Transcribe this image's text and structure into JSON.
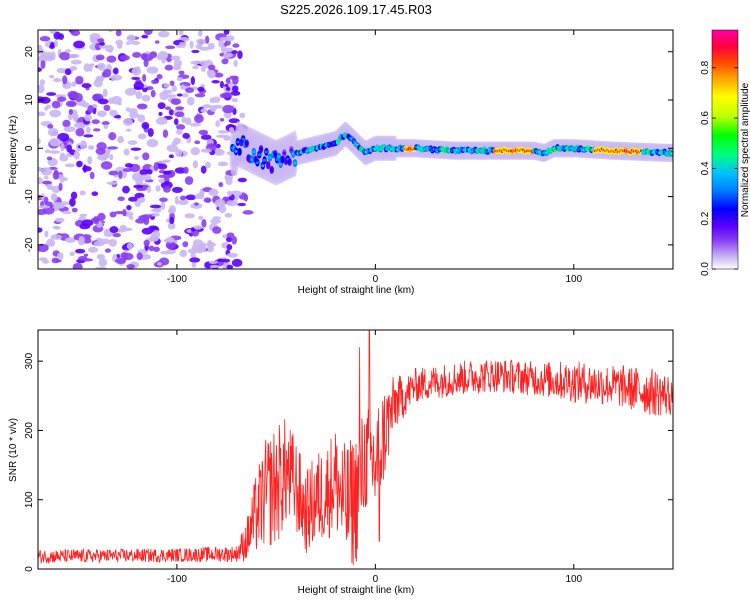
{
  "figure_title": "S225.2026.109.17.45.R03",
  "chart_data": [
    {
      "type": "heatmap",
      "title": "S225.2026.109.17.45.R03",
      "xlabel": "Height of straight line (km)",
      "ylabel": "Frequency (Hz)",
      "xlim": [
        -170,
        150
      ],
      "ylim": [
        -25,
        24.5
      ],
      "xticks": [
        -100,
        0,
        100
      ],
      "yticks": [
        -20,
        -10,
        0,
        10,
        20
      ],
      "colorbar": {
        "label": "Normalized spectral amplitude",
        "range": [
          0,
          0.95
        ],
        "ticks": [
          0.0,
          0.2,
          0.4,
          0.6,
          0.8
        ],
        "colormap": [
          "#ffffff",
          "#c9b6f2",
          "#8a3ef0",
          "#5a00ff",
          "#0000ff",
          "#0080ff",
          "#00c0ff",
          "#00ff80",
          "#00ff00",
          "#c0ff00",
          "#ffff00",
          "#ffa000",
          "#ff4000",
          "#ff0040",
          "#ff00a0"
        ]
      },
      "ridge": {
        "description_points_x": [
          -70,
          -60,
          -50,
          -40,
          -30,
          -20,
          -15,
          -10,
          -5,
          0,
          10,
          20,
          40,
          60,
          80,
          85,
          90,
          100,
          120,
          150
        ],
        "frequency_hz": [
          1,
          -1,
          -3,
          -1,
          0,
          1,
          3,
          1,
          -1,
          0,
          0,
          0,
          -0.5,
          -0.5,
          -0.5,
          -1,
          0,
          0,
          -0.5,
          -1
        ]
      }
    },
    {
      "type": "line",
      "xlabel": "Height of straight line (km)",
      "ylabel": "SNR (10 * v/v)",
      "xlim": [
        -170,
        150
      ],
      "ylim": [
        0,
        345
      ],
      "xticks": [
        -100,
        0,
        100
      ],
      "yticks": [
        0,
        100,
        200,
        300
      ],
      "series": [
        {
          "name": "SNR",
          "color": "#ff2020",
          "envelope_x": [
            -170,
            -100,
            -70,
            -65,
            -60,
            -55,
            -50,
            -45,
            -40,
            -35,
            -30,
            -25,
            -20,
            -15,
            -10,
            -5,
            0,
            5,
            10,
            15,
            20,
            30,
            40,
            60,
            80,
            100,
            120,
            140,
            150
          ],
          "envelope_mean": [
            18,
            20,
            22,
            40,
            80,
            110,
            120,
            140,
            120,
            80,
            100,
            110,
            130,
            90,
            100,
            160,
            150,
            200,
            240,
            250,
            265,
            270,
            275,
            280,
            275,
            270,
            265,
            255,
            250
          ],
          "envelope_amp": [
            10,
            10,
            12,
            30,
            60,
            80,
            90,
            80,
            70,
            60,
            70,
            70,
            80,
            90,
            100,
            80,
            90,
            70,
            40,
            30,
            25,
            25,
            25,
            25,
            25,
            30,
            30,
            35,
            30
          ],
          "spikes": [
            {
              "x": -3,
              "y": 345
            },
            {
              "x": -8,
              "y": 320
            },
            {
              "x": -10,
              "y": 15
            },
            {
              "x": 2,
              "y": 40
            }
          ]
        }
      ]
    }
  ]
}
